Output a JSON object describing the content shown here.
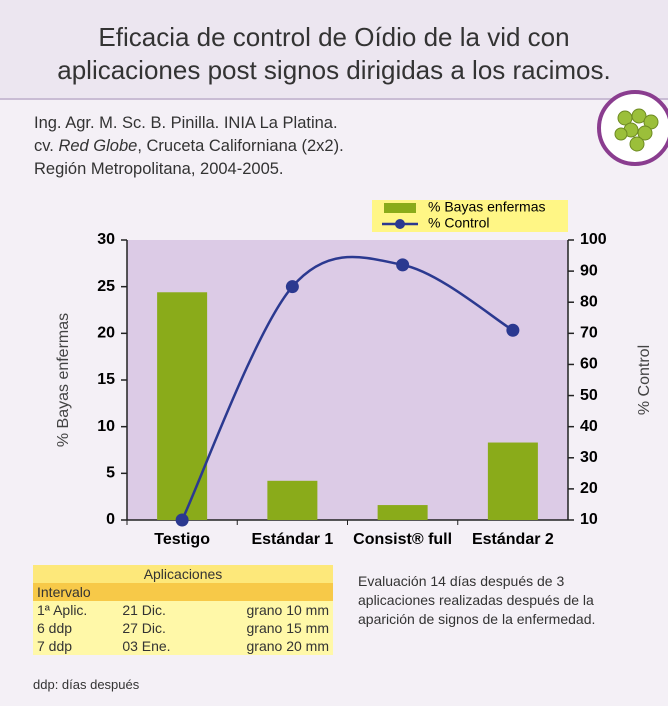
{
  "header": {
    "title": [
      "Eficacia de control de Oídio de la vid con",
      "aplicaciones post signos dirigidas a los racimos."
    ]
  },
  "credits": {
    "line1": "Ing. Agr. M. Sc. B. Pinilla. INIA La Platina.",
    "line2": [
      "cv. ",
      "Red Globe",
      ", Cruceta Californiana (2x2)."
    ],
    "line3": "Región Metropolitana, 2004-2005."
  },
  "chart_data": {
    "type": "bar",
    "categories": [
      "Testigo",
      "Estándar 1",
      "Consist® full",
      "Estándar 2"
    ],
    "series": [
      {
        "name": "% Bayas enfermas",
        "type": "bar",
        "color": "#8aab1a",
        "values": [
          24.4,
          4.2,
          1.6,
          8.3
        ]
      },
      {
        "name": "% Control",
        "type": "line",
        "axis": "y2",
        "color": "#2b3990",
        "values": [
          10,
          85,
          92,
          71
        ]
      }
    ],
    "y_label": "% Bayas enfermas",
    "y2_label": "% Control",
    "ylim": [
      0,
      30
    ],
    "yticks": [
      0,
      5,
      10,
      15,
      20,
      25,
      30
    ],
    "y2lim": [
      10,
      100
    ],
    "y2ticks": [
      10,
      20,
      30,
      40,
      50,
      60,
      70,
      80,
      90,
      100
    ],
    "legend": "top-right"
  },
  "table": {
    "title": "Aplicaciones",
    "subheader": "Intervalo",
    "rows": [
      [
        "1ª Aplic.",
        "21 Dic.",
        "grano 10 mm"
      ],
      [
        "6 ddp",
        "27 Dic.",
        "grano 15 mm"
      ],
      [
        "7 ddp",
        "03 Ene.",
        "grano 20 mm"
      ]
    ]
  },
  "note": "Evaluación 14 días después de 3 aplicaciones realizadas después de la aparición de signos de la enfermedad.",
  "footnote": "ddp: días después"
}
